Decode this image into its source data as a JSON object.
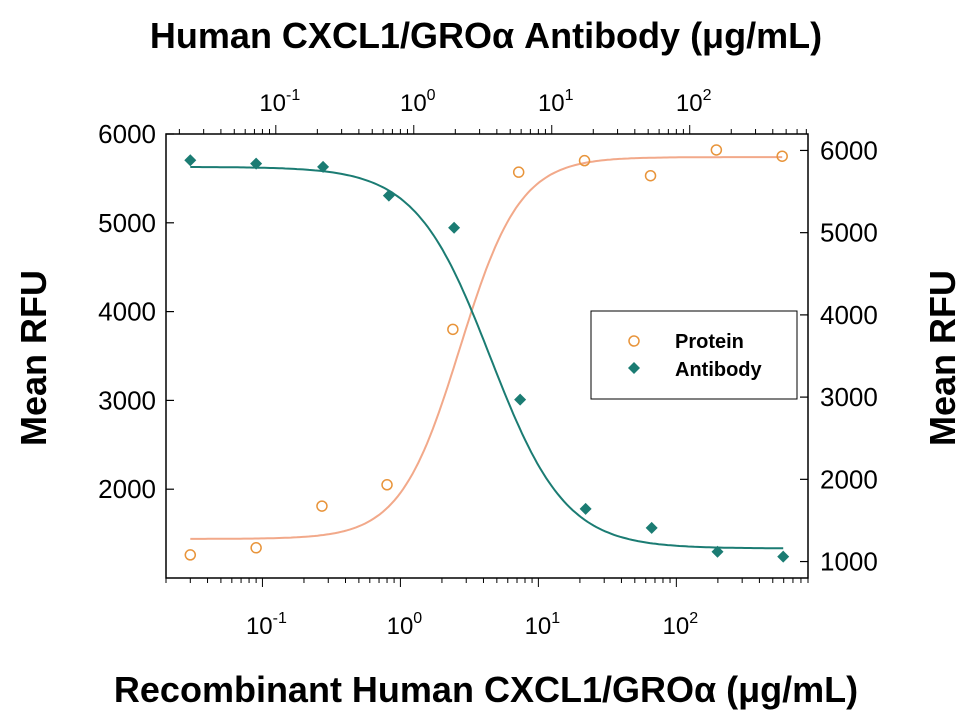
{
  "chart_data": {
    "type": "scatter",
    "top_title": "Human CXCL1/GROα Antibody (μg/mL)",
    "xlabel": "Recombinant Human CXCL1/GROα (μg/mL)",
    "ylabel_left": "Mean RFU",
    "ylabel_right": "Mean RFU",
    "x_scale": "log",
    "x_bottom": {
      "range": [
        0.02,
        900
      ],
      "ticks": [
        {
          "value": 0.1,
          "base": "10",
          "exp": "-1"
        },
        {
          "value": 1,
          "base": "10",
          "exp": "0"
        },
        {
          "value": 10,
          "base": "10",
          "exp": "1"
        },
        {
          "value": 100,
          "base": "10",
          "exp": "2"
        }
      ]
    },
    "x_top": {
      "range": [
        0.016,
        720
      ],
      "ticks": [
        {
          "value": 0.1,
          "base": "10",
          "exp": "-1"
        },
        {
          "value": 1,
          "base": "10",
          "exp": "0"
        },
        {
          "value": 10,
          "base": "10",
          "exp": "1"
        },
        {
          "value": 100,
          "base": "10",
          "exp": "2"
        }
      ]
    },
    "y_left": {
      "range": [
        1000,
        6000
      ],
      "ticks": [
        "2000",
        "3000",
        "4000",
        "5000",
        "6000"
      ]
    },
    "y_right": {
      "range": [
        800,
        6200
      ],
      "ticks": [
        "1000",
        "2000",
        "3000",
        "4000",
        "5000",
        "6000"
      ]
    },
    "legend": {
      "position": "center-right"
    },
    "series": [
      {
        "name": "Protein",
        "axis": "bottom-left",
        "marker": "open-circle",
        "color": "#E8943A",
        "curve_color": "#F2A98A",
        "x": [
          0.03,
          0.09,
          0.27,
          0.8,
          2.4,
          7.2,
          21.6,
          65,
          195,
          585
        ],
        "y": [
          1260,
          1340,
          1810,
          2050,
          3800,
          5570,
          5700,
          5530,
          5820,
          5750
        ],
        "fit": {
          "bottom": 1440,
          "top": 5740,
          "ec50": 2.7,
          "hill": 2.0
        }
      },
      {
        "name": "Antibody",
        "axis": "top-right",
        "marker": "filled-diamond",
        "color": "#1B7C73",
        "curve_color": "#1B7C73",
        "x": [
          0.024,
          0.072,
          0.22,
          0.66,
          1.96,
          5.9,
          17.6,
          53,
          159,
          476
        ],
        "y": [
          5880,
          5840,
          5800,
          5450,
          5060,
          2970,
          1640,
          1410,
          1120,
          1060
        ],
        "fit": {
          "bottom": 1160,
          "top": 5800,
          "ec50": 3.6,
          "hill": 1.6
        }
      }
    ]
  }
}
